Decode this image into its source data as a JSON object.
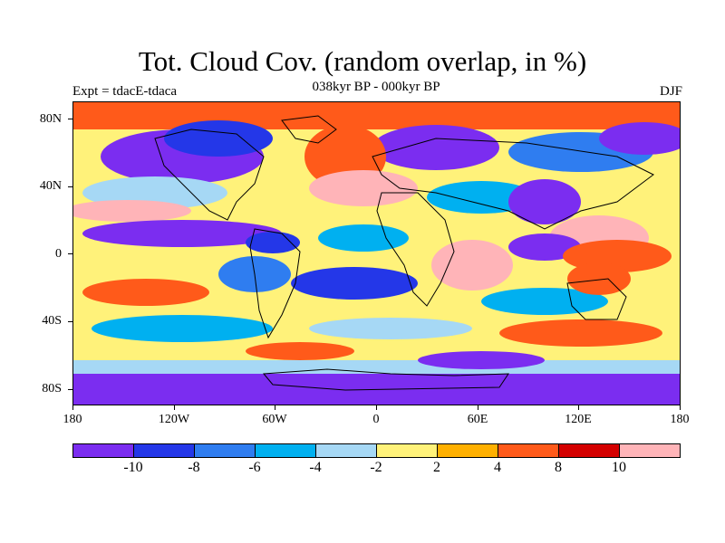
{
  "title": "Tot. Cloud Cov. (random overlap, in %)",
  "subtitle": "038kyr BP - 000kyr BP",
  "left_label": "Expt = tdacE-tdaca",
  "right_label": "DJF",
  "map": {
    "lat_ticks": [
      "80N",
      "40N",
      "0",
      "40S",
      "80S"
    ],
    "lon_ticks": [
      "180",
      "120W",
      "60W",
      "0",
      "60E",
      "120E",
      "180"
    ]
  },
  "colorbar": {
    "colors": [
      "#7b2df0",
      "#2437e8",
      "#2f7df0",
      "#00b0f0",
      "#a6d8f5",
      "#fff27a",
      "#ffb000",
      "#ff5a1a",
      "#d40000",
      "#ffb4b8"
    ],
    "labels": [
      "-10",
      "-8",
      "-6",
      "-4",
      "-2",
      "2",
      "4",
      "8",
      "10"
    ]
  }
}
